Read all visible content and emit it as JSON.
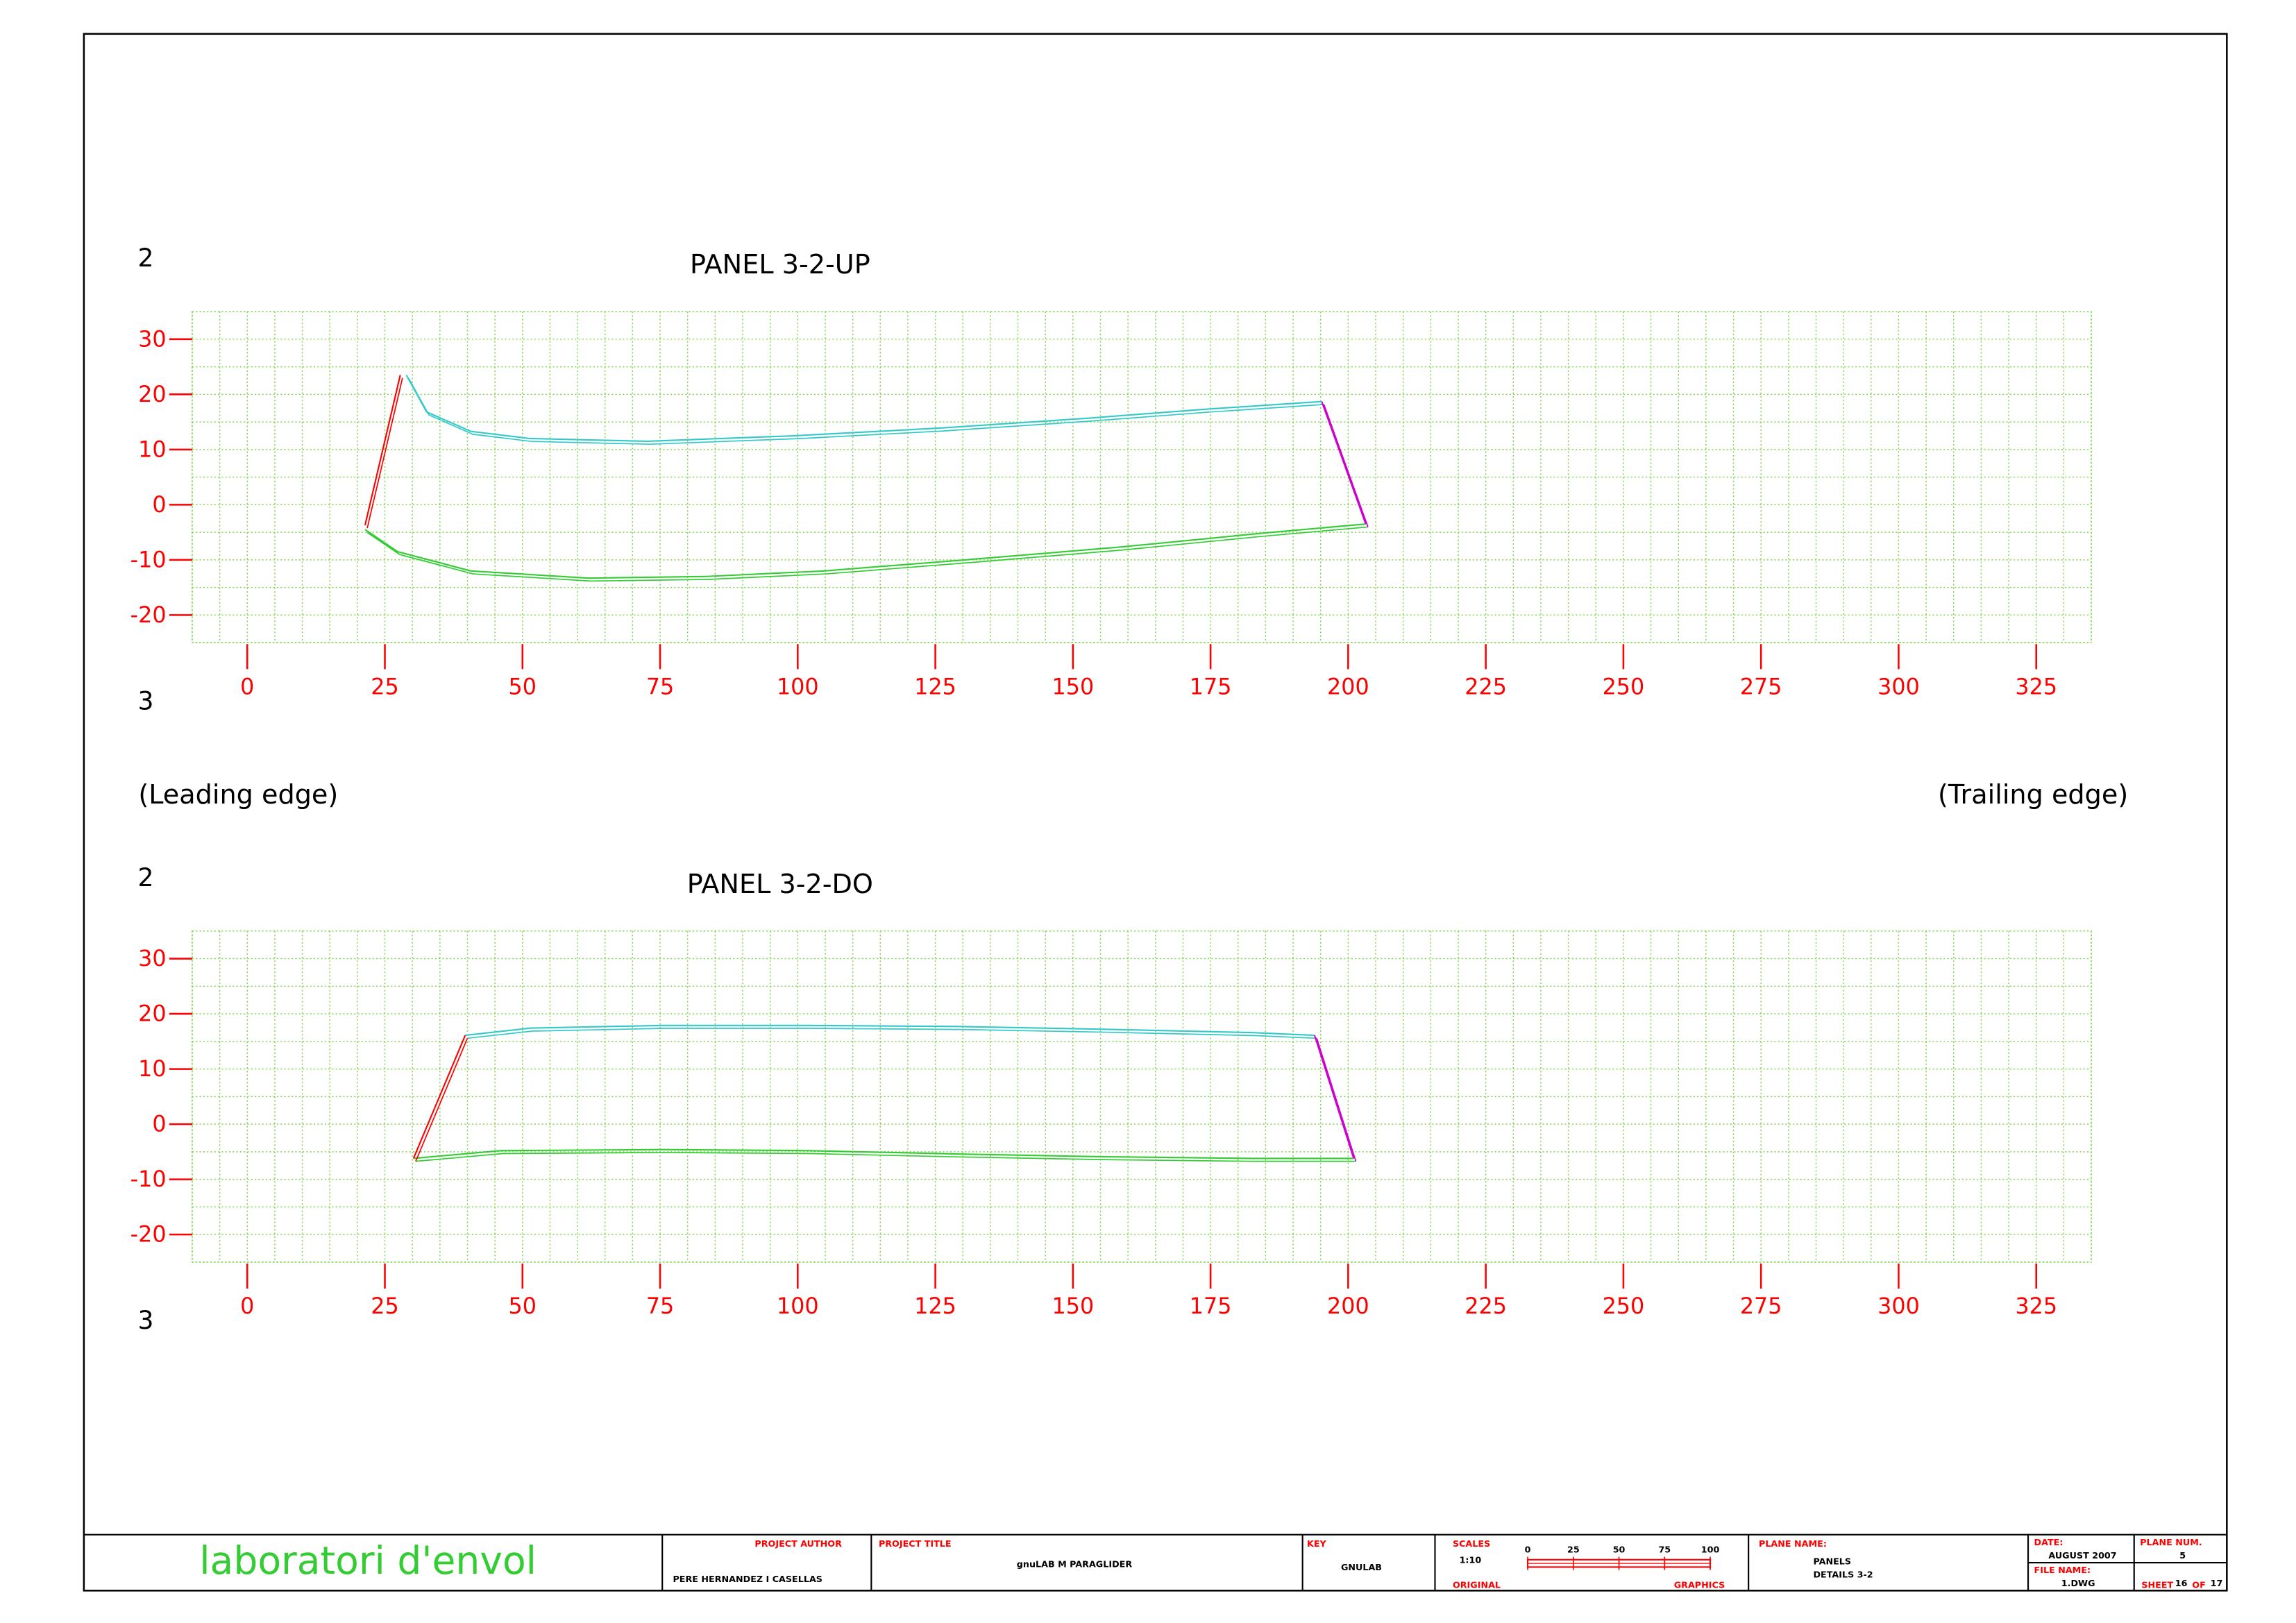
{
  "chart_data": [
    {
      "type": "line",
      "title": "PANEL 3-2-UP",
      "rib_top": "2",
      "rib_bottom": "3",
      "xlim": [
        -10,
        335
      ],
      "ylim": [
        -25,
        35
      ],
      "xticks": [
        0,
        25,
        50,
        75,
        100,
        125,
        150,
        175,
        200,
        225,
        250,
        275,
        300,
        325
      ],
      "yticks": [
        -20,
        -10,
        0,
        10,
        20,
        30
      ],
      "grid": true,
      "grid_color": "#7fd64f",
      "tick_color": "#ff0000",
      "series": [
        {
          "color": "#33c9c9",
          "x": [
            28.9,
            32.6,
            40.6,
            51.3,
            72.7,
            99.5,
            126,
            153,
            174,
            195.2
          ],
          "values": [
            23.5,
            16.8,
            13.3,
            12,
            11.5,
            12.5,
            13.9,
            15.7,
            17.3,
            18.7
          ]
        },
        {
          "color": "#33cc33",
          "x": [
            21.4,
            27.3,
            40.6,
            62,
            83.4,
            104.8,
            131.6,
            158.3,
            185,
            203.2
          ],
          "values": [
            -4.5,
            -8.5,
            -12,
            -13.3,
            -13,
            -12,
            -9.9,
            -7.7,
            -5.1,
            -3.5
          ]
        },
        {
          "color": "#ff0000",
          "x": [
            27.8,
            21.4
          ],
          "values": [
            23.5,
            -3.7
          ]
        },
        {
          "color": "#cc00cc",
          "x": [
            195.2,
            203.2
          ],
          "values": [
            18.7,
            -3.5
          ]
        }
      ]
    },
    {
      "type": "line",
      "title": "PANEL 3-2-DO",
      "rib_top": "2",
      "rib_bottom": "3",
      "xlim": [
        -10,
        335
      ],
      "ylim": [
        -25,
        35
      ],
      "xticks": [
        0,
        25,
        50,
        75,
        100,
        125,
        150,
        175,
        200,
        225,
        250,
        275,
        300,
        325
      ],
      "yticks": [
        -20,
        -10,
        0,
        10,
        20,
        30
      ],
      "grid": true,
      "grid_color": "#7fd64f",
      "tick_color": "#ff0000",
      "series": [
        {
          "color": "#33c9c9",
          "x": [
            39.6,
            51.3,
            75.4,
            102,
            128.9,
            155.6,
            182.4,
            193.9
          ],
          "values": [
            16.1,
            17.4,
            17.9,
            17.9,
            17.7,
            17.2,
            16.6,
            16.1
          ]
        },
        {
          "color": "#33cc33",
          "x": [
            30.2,
            46,
            75.4,
            102,
            128.9,
            155.6,
            182.4,
            201
          ],
          "values": [
            -6.2,
            -4.8,
            -4.6,
            -4.8,
            -5.4,
            -5.9,
            -6.2,
            -6.2
          ]
        },
        {
          "color": "#ff0000",
          "x": [
            39.6,
            30.2
          ],
          "values": [
            16.1,
            -6.2
          ]
        },
        {
          "color": "#cc00cc",
          "x": [
            193.9,
            201
          ],
          "values": [
            16.1,
            -6.2
          ]
        }
      ]
    }
  ],
  "annotations": {
    "leading_edge": "(Leading edge)",
    "trailing_edge": "(Trailing edge)"
  },
  "title_block": {
    "logo": "laboratori d'envol",
    "author_label": "PROJECT AUTHOR",
    "author": "PERE HERNANDEZ I CASELLAS",
    "project_label": "PROJECT TITLE",
    "project": "gnuLAB M PARAGLIDER",
    "key_label": "KEY",
    "key": "GNULAB",
    "scales_label": "SCALES",
    "scale": "1:10",
    "scale_bar": [
      0,
      25,
      50,
      75,
      100
    ],
    "original_label": "ORIGINAL",
    "graphics_label": "GRAPHICS",
    "plane_name_label": "PLANE NAME:",
    "plane_name": [
      "PANELS",
      "DETAILS 3-2"
    ],
    "date_label": "DATE:",
    "date": "AUGUST 2007",
    "file_name_label": "FILE NAME:",
    "file_name": "1.DWG",
    "plane_num_label": "PLANE NUM.",
    "plane_num": "5",
    "sheet_label": "SHEET",
    "sheet": "16",
    "of_label": "OF",
    "sheet_total": "17"
  }
}
